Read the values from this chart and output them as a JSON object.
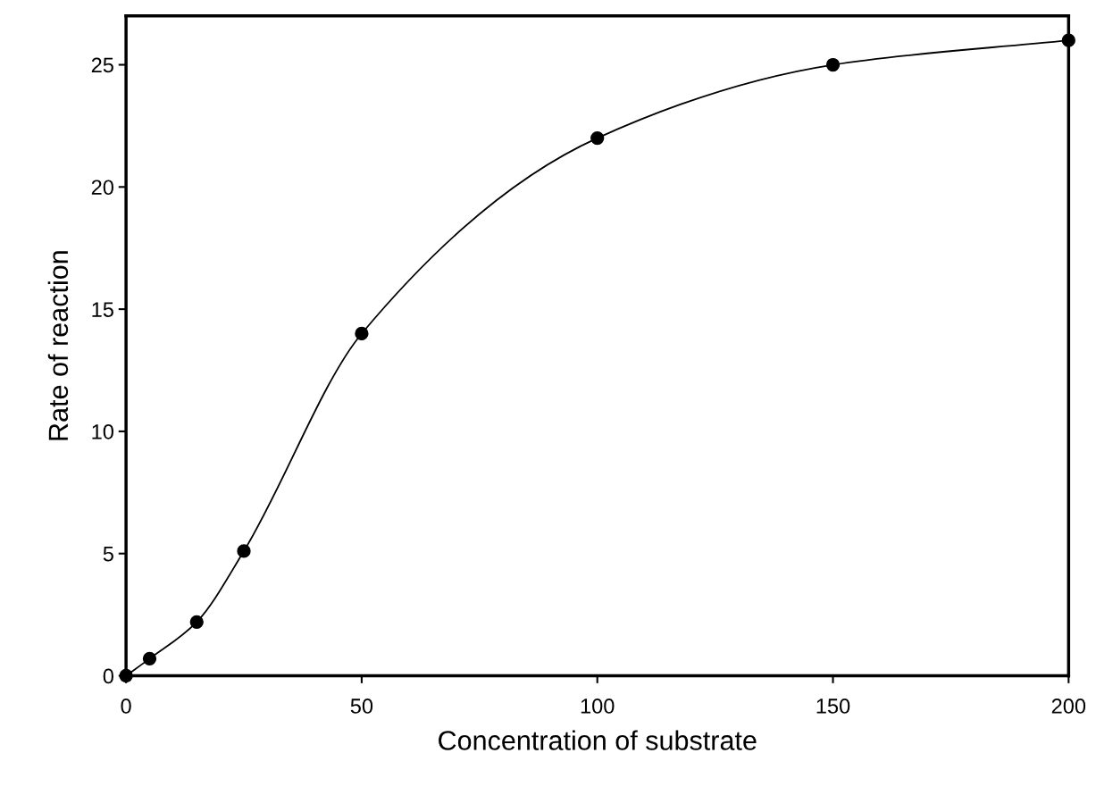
{
  "chart_data": {
    "type": "line",
    "xlabel": "Concentration of substrate",
    "ylabel": "Rate of reaction",
    "x": [
      0,
      5,
      15,
      25,
      50,
      100,
      150,
      200
    ],
    "series": [
      {
        "color": "#000000",
        "values": [
          0,
          0.7,
          2.2,
          5.1,
          14,
          22,
          25,
          26
        ]
      }
    ],
    "xlim": [
      0,
      200
    ],
    "ylim": [
      0,
      27
    ],
    "xticks": [
      0,
      50,
      100,
      150,
      200
    ],
    "yticks": [
      0,
      5,
      10,
      15,
      20,
      25
    ],
    "marker": "circle",
    "line_style": "solid",
    "grid": false,
    "legend": false
  }
}
